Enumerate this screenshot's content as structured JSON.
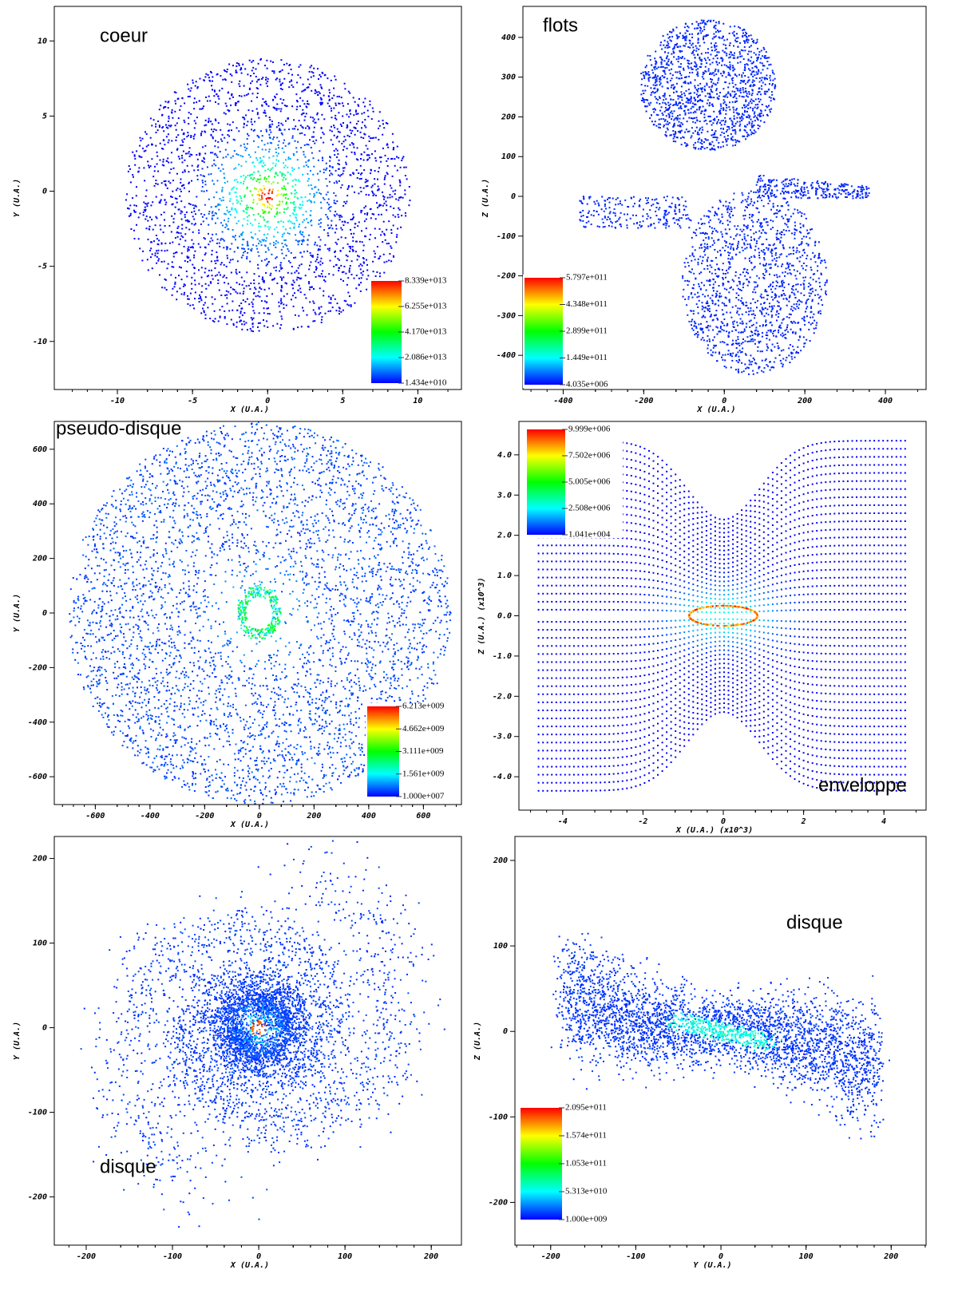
{
  "chart_data": [
    {
      "type": "scatter",
      "annotation": "coeur",
      "x_label": "X (U.A.)",
      "y_label": "Y (U.A.)",
      "xlim": [
        -14.2,
        12.9
      ],
      "ylim": [
        -13.2,
        12.3
      ],
      "xticks": [
        -10,
        -5,
        0,
        5,
        10
      ],
      "yticks": [
        -10,
        -5,
        0,
        5,
        10
      ],
      "colorbar": {
        "colors": [
          "#0000ff",
          "#00ffff",
          "#00ff00",
          "#ffff00",
          "#ff0000"
        ],
        "ticks": [
          {
            "value": 83390000000000.0,
            "label": "8.339e+013"
          },
          {
            "value": 62550000000000.0,
            "label": "6.255e+013"
          },
          {
            "value": 41700000000000.0,
            "label": "4.170e+013"
          },
          {
            "value": 20860000000000.0,
            "label": "2.086e+013"
          },
          {
            "value": 14340000000.0,
            "label": "1.434e+010"
          }
        ]
      }
    },
    {
      "type": "scatter",
      "annotation": "flots",
      "x_label": "X (U.A.)",
      "y_label": "Z (U.A.)",
      "xlim": [
        -500,
        501
      ],
      "ylim": [
        -486,
        478
      ],
      "xticks": [
        -400,
        -200,
        0,
        200,
        400
      ],
      "yticks": [
        -400,
        -300,
        -200,
        -100,
        0,
        100,
        200,
        300,
        400
      ],
      "colorbar": {
        "colors": [
          "#0000ff",
          "#00ffff",
          "#00ff00",
          "#ffff00",
          "#ff0000"
        ],
        "ticks": [
          {
            "value": 579700000000.0,
            "label": "5.797e+011"
          },
          {
            "value": 434800000000.0,
            "label": "4.348e+011"
          },
          {
            "value": 289900000000.0,
            "label": "2.899e+011"
          },
          {
            "value": 144900000000.0,
            "label": "1.449e+011"
          },
          {
            "value": 4035000.0,
            "label": "4.035e+006"
          }
        ]
      }
    },
    {
      "type": "scatter",
      "annotation": "pseudo-disque",
      "x_label": "X (U.A.)",
      "y_label": "Y (U.A.)",
      "xlim": [
        -750,
        739
      ],
      "ylim": [
        -702,
        702
      ],
      "xticks": [
        -600,
        -400,
        -200,
        0,
        200,
        400,
        600
      ],
      "yticks": [
        -600,
        -400,
        -200,
        0,
        200,
        400,
        600
      ],
      "colorbar": {
        "colors": [
          "#0000ff",
          "#00ffff",
          "#00ff00",
          "#ffff00",
          "#ff0000"
        ],
        "ticks": [
          {
            "value": 6213000000.0,
            "label": "6.213e+009"
          },
          {
            "value": 4662000000.0,
            "label": "4.662e+009"
          },
          {
            "value": 3111000000.0,
            "label": "3.111e+009"
          },
          {
            "value": 1561000000.0,
            "label": "1.561e+009"
          },
          {
            "value": 10000000.0,
            "label": "1.000e+007"
          }
        ]
      }
    },
    {
      "type": "scatter",
      "annotation": "enveloppe",
      "x_label": "X (U.A.) (x10^3)",
      "y_label": "Z (U.A.) (x10^3)",
      "xlim": [
        -5.09,
        5.05
      ],
      "ylim": [
        -4.83,
        4.83
      ],
      "xticks": [
        -4,
        -2,
        0,
        2,
        4
      ],
      "yticks": [
        {
          "value": -4,
          "label": "-4.0"
        },
        {
          "value": -3,
          "label": "-3.0"
        },
        {
          "value": -2,
          "label": "-2.0"
        },
        {
          "value": -1,
          "label": "-1.0"
        },
        {
          "value": 0,
          "label": "0.0"
        },
        {
          "value": 1,
          "label": "1.0"
        },
        {
          "value": 2,
          "label": "2.0"
        },
        {
          "value": 3,
          "label": "3.0"
        },
        {
          "value": 4,
          "label": "4.0"
        }
      ],
      "colorbar": {
        "colors": [
          "#0000ff",
          "#00ffff",
          "#00ff00",
          "#ffff00",
          "#ff0000"
        ],
        "ticks": [
          {
            "value": 9999000.0,
            "label": "9.999e+006"
          },
          {
            "value": 7502000.0,
            "label": "7.502e+006"
          },
          {
            "value": 5005000.0,
            "label": "5.005e+006"
          },
          {
            "value": 2508000.0,
            "label": "2.508e+006"
          },
          {
            "value": 10410.0,
            "label": "1.041e+004"
          }
        ]
      }
    },
    {
      "type": "scatter",
      "annotation": "disque",
      "x_label": "X (U.A.)",
      "y_label": "Y (U.A.)",
      "xlim": [
        -237,
        235
      ],
      "ylim": [
        -257,
        226
      ],
      "xticks": [
        -200,
        -100,
        0,
        100,
        200
      ],
      "yticks": [
        -200,
        -100,
        0,
        100,
        200
      ]
    },
    {
      "type": "scatter",
      "annotation": "disque",
      "x_label": "Y (U.A.)",
      "y_label": "Z (U.A.)",
      "xlim": [
        -242,
        241
      ],
      "ylim": [
        -250,
        228
      ],
      "xticks": [
        -200,
        -100,
        0,
        100,
        200
      ],
      "yticks": [
        -200,
        -100,
        0,
        100,
        200
      ],
      "colorbar": {
        "colors": [
          "#0000ff",
          "#00ffff",
          "#00ff00",
          "#ffff00",
          "#ff0000"
        ],
        "ticks": [
          {
            "value": 209500000000.0,
            "label": "2.095e+011"
          },
          {
            "value": 157400000000.0,
            "label": "1.574e+011"
          },
          {
            "value": 105300000000.0,
            "label": "1.053e+011"
          },
          {
            "value": 53130000000.0,
            "label": "5.313e+010"
          },
          {
            "value": 1000000000.0,
            "label": "1.000e+009"
          }
        ]
      }
    }
  ]
}
